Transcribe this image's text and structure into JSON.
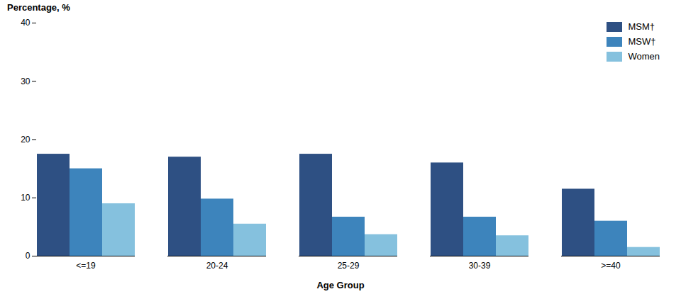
{
  "chart_data": {
    "type": "bar",
    "ylabel": "Percentage, %",
    "xlabel": "Age Group",
    "categories": [
      "<=19",
      "20-24",
      "25-29",
      "30-39",
      ">=40"
    ],
    "series": [
      {
        "name": "MSM†",
        "color": "#2e5083",
        "values": [
          17.5,
          17.0,
          17.5,
          16.0,
          11.5
        ]
      },
      {
        "name": "MSW†",
        "color": "#3d84bc",
        "values": [
          15.0,
          9.8,
          6.7,
          6.7,
          6.0
        ]
      },
      {
        "name": "Women",
        "color": "#85c1de",
        "values": [
          9.0,
          5.5,
          3.7,
          3.5,
          1.5
        ]
      }
    ],
    "ylim": [
      0,
      40
    ],
    "yticks": [
      0,
      10,
      20,
      30,
      40
    ],
    "grid": false,
    "legend": "upper right"
  }
}
